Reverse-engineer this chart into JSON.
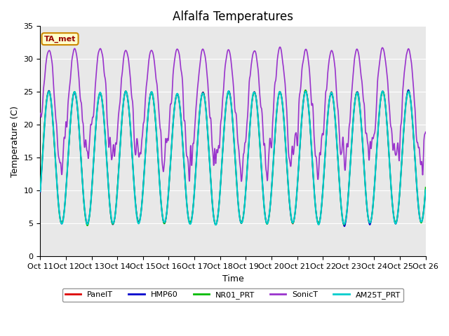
{
  "title": "Alfalfa Temperatures",
  "xlabel": "Time",
  "ylabel": "Temperature (C)",
  "ylim": [
    0,
    35
  ],
  "xlim": [
    0,
    15
  ],
  "fig_bg": "#ffffff",
  "plot_bg": "#e8e8e8",
  "series": {
    "PanelT": {
      "color": "#dd0000",
      "lw": 1.0,
      "zorder": 3
    },
    "HMP60": {
      "color": "#0000cc",
      "lw": 1.2,
      "zorder": 4
    },
    "NR01_PRT": {
      "color": "#00bb00",
      "lw": 1.2,
      "zorder": 5
    },
    "SonicT": {
      "color": "#9933cc",
      "lw": 1.2,
      "zorder": 6
    },
    "AM25T_PRT": {
      "color": "#00cccc",
      "lw": 1.5,
      "zorder": 7
    }
  },
  "yticks": [
    0,
    5,
    10,
    15,
    20,
    25,
    30,
    35
  ],
  "xtick_labels": [
    "Oct 11",
    "Oct 12",
    "Oct 13",
    "Oct 14",
    "Oct 15",
    "Oct 16",
    "Oct 17",
    "Oct 18",
    "Oct 19",
    "Oct 20",
    "Oct 21",
    "Oct 22",
    "Oct 23",
    "Oct 24",
    "Oct 25",
    "Oct 26"
  ],
  "annotation_text": "TA_met",
  "grid_color": "#ffffff",
  "title_fontsize": 12,
  "axis_fontsize": 9,
  "tick_fontsize": 8
}
